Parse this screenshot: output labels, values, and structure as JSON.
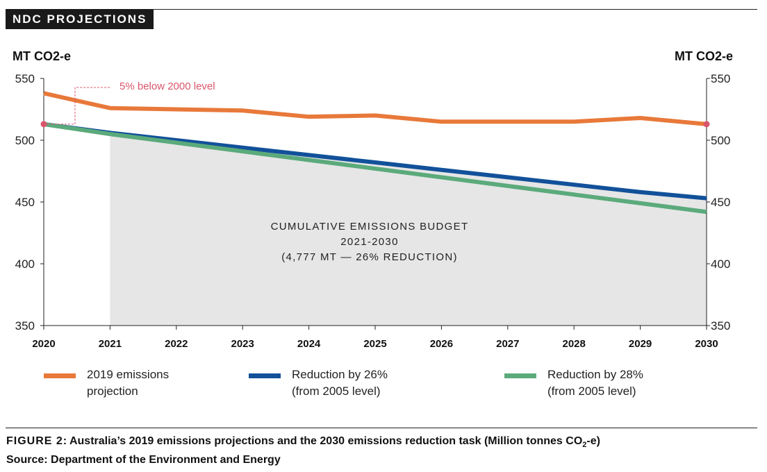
{
  "header": {
    "tag": "NDC PROJECTIONS"
  },
  "axes": {
    "left_unit": "MT CO2-e",
    "right_unit": "MT CO2-e"
  },
  "annotations": {
    "callout": "5% below 2000 level",
    "budget_lines": [
      "CUMULATIVE EMISSIONS BUDGET",
      "2021-2030",
      "(4,777 MT — 26% REDUCTION)"
    ]
  },
  "legend": [
    {
      "label": "2019 emissions\nprojection",
      "color": "#E8793A"
    },
    {
      "label": "Reduction by 26%\n(from 2005 level)",
      "color": "#12519A"
    },
    {
      "label": "Reduction by 28%\n(from 2005 level)",
      "color": "#5BAA7B"
    }
  ],
  "caption": {
    "figure_label": "FIGURE 2",
    "figure_text": ": Australia’s 2019 emissions projections and the 2030 emissions reduction task (Million tonnes CO",
    "figure_sub": "2",
    "figure_end": "-e)",
    "source": "Source: Department of the Environment and Energy"
  },
  "colors": {
    "budget_fill": "#E6E6E6",
    "marker": "#D9556A",
    "callout": "#D9556A"
  },
  "chart_data": {
    "type": "line",
    "x": [
      2020,
      2021,
      2022,
      2023,
      2024,
      2025,
      2026,
      2027,
      2028,
      2029,
      2030
    ],
    "ylim": [
      350,
      550
    ],
    "yticks": [
      350,
      400,
      450,
      500,
      550
    ],
    "series": [
      {
        "name": "2019 emissions projection",
        "color": "#E8793A",
        "values": [
          538,
          526,
          525,
          524,
          519,
          520,
          515,
          515,
          515,
          518,
          513
        ]
      },
      {
        "name": "Reduction by 26% (from 2005 level)",
        "color": "#12519A",
        "values": [
          513,
          506,
          500,
          494,
          488,
          482,
          476,
          470,
          464,
          458,
          453
        ]
      },
      {
        "name": "Reduction by 28% (from 2005 level)",
        "color": "#5BAA7B",
        "values": [
          513,
          505,
          498,
          491,
          484,
          477,
          470,
          463,
          456,
          449,
          442
        ]
      }
    ],
    "budget_area": {
      "x_start": 2021,
      "x_end": 2030,
      "label": "CUMULATIVE EMISSIONS BUDGET 2021-2030 (4,777 MT — 26% REDUCTION)"
    },
    "start_marker": 513,
    "end_marker": 513
  }
}
